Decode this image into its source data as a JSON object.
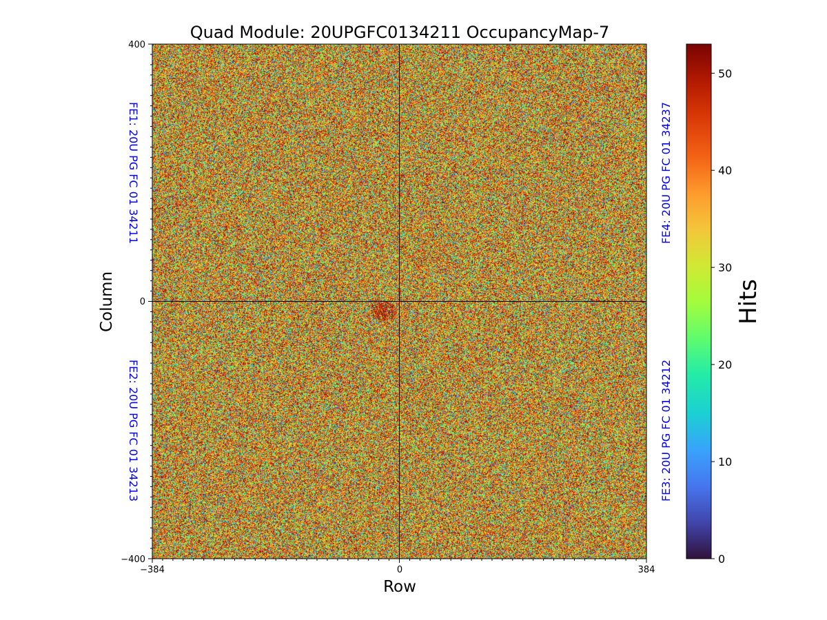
{
  "chart_data": {
    "type": "heatmap",
    "title": "Quad Module: 20UPGFC0134211 OccupancyMap-7",
    "xlabel": "Row",
    "ylabel": "Column",
    "xlim": [
      -384,
      384
    ],
    "ylim": [
      -400,
      400
    ],
    "x_ticks": [
      -384,
      0,
      384
    ],
    "y_ticks": [
      -400,
      0,
      400
    ],
    "x_tick_labels": [
      "−384",
      "0",
      "384"
    ],
    "y_tick_labels": [
      "−400",
      "0",
      "400"
    ],
    "divider_lines": {
      "x": 0,
      "y": 0
    },
    "colormap": "turbo",
    "value_range": [
      0,
      53
    ],
    "hot_spot": {
      "x_range": [
        -45,
        -5
      ],
      "y_range": [
        -30,
        0
      ],
      "level": "high (~45-53 hits)"
    },
    "colorbar": {
      "label": "Hits",
      "min": 0,
      "max": 53,
      "ticks": [
        0,
        10,
        20,
        30,
        40,
        50
      ],
      "tick_labels": [
        "0",
        "10",
        "20",
        "30",
        "40",
        "50"
      ]
    },
    "chips": [
      {
        "id": "FE1",
        "label": "FE1: 20U PG FC 01 34211",
        "quadrant": "top-left"
      },
      {
        "id": "FE2",
        "label": "FE2: 20U PG FC 01 34213",
        "quadrant": "bottom-left"
      },
      {
        "id": "FE3",
        "label": "FE3: 20U PG FC 01 34212",
        "quadrant": "bottom-right"
      },
      {
        "id": "FE4",
        "label": "FE4: 20U PG FC 01 34237",
        "quadrant": "top-right"
      }
    ],
    "chip_label_color": "#0000ff"
  }
}
